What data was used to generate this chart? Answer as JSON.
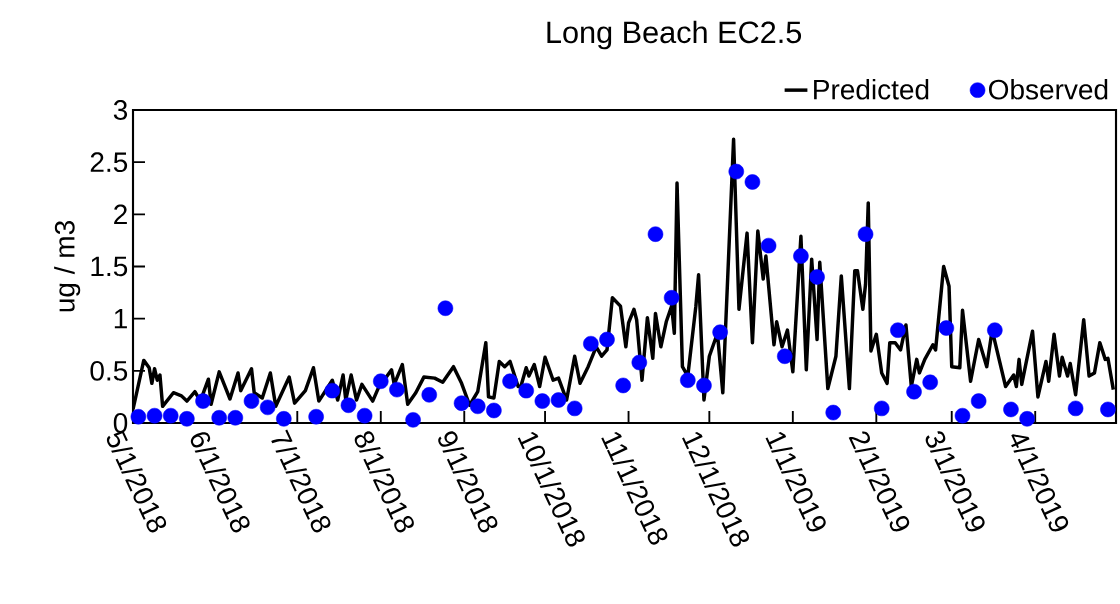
{
  "chart_data": {
    "type": "line",
    "title": "Long Beach  EC2.5",
    "ylabel": "ug / m3",
    "xlim": [
      "2018-05-01",
      "2019-05-01"
    ],
    "xticks": [
      {
        "value": "2018-05-01",
        "label": "5/1/2018"
      },
      {
        "value": "2018-06-01",
        "label": "6/1/2018"
      },
      {
        "value": "2018-07-01",
        "label": "7/1/2018"
      },
      {
        "value": "2018-08-01",
        "label": "8/1/2018"
      },
      {
        "value": "2018-09-01",
        "label": "9/1/2018"
      },
      {
        "value": "2018-10-01",
        "label": "10/1/2018"
      },
      {
        "value": "2018-11-01",
        "label": "11/1/2018"
      },
      {
        "value": "2018-12-01",
        "label": "12/1/2018"
      },
      {
        "value": "2019-01-01",
        "label": "1/1/2019"
      },
      {
        "value": "2019-02-01",
        "label": "2/1/2019"
      },
      {
        "value": "2019-03-01",
        "label": "3/1/2019"
      },
      {
        "value": "2019-04-01",
        "label": "4/1/2019"
      }
    ],
    "ylim": [
      0,
      3
    ],
    "yticks": [
      0,
      0.5,
      1,
      1.5,
      2,
      2.5,
      3
    ],
    "legend": "top right",
    "grid": false,
    "series": [
      {
        "name": "Predicted",
        "color": "#000000",
        "marker": "none",
        "line_style": "solid",
        "x": [
          "2018-05-01",
          "2018-05-05",
          "2018-05-07",
          "2018-05-08",
          "2018-05-09",
          "2018-05-10",
          "2018-05-11",
          "2018-05-12",
          "2018-05-16",
          "2018-05-19",
          "2018-05-21",
          "2018-05-24",
          "2018-05-26",
          "2018-05-29",
          "2018-05-30",
          "2018-06-02",
          "2018-06-04",
          "2018-06-06",
          "2018-06-09",
          "2018-06-10",
          "2018-06-14",
          "2018-06-15",
          "2018-06-18",
          "2018-06-21",
          "2018-06-23",
          "2018-06-28",
          "2018-06-30",
          "2018-07-04",
          "2018-07-07",
          "2018-07-09",
          "2018-07-14",
          "2018-07-16",
          "2018-07-18",
          "2018-07-19",
          "2018-07-21",
          "2018-07-23",
          "2018-07-25",
          "2018-07-29",
          "2018-07-31",
          "2018-08-05",
          "2018-08-06",
          "2018-08-09",
          "2018-08-11",
          "2018-08-14",
          "2018-08-17",
          "2018-08-21",
          "2018-08-24",
          "2018-08-28",
          "2018-08-31",
          "2018-09-03",
          "2018-09-06",
          "2018-09-09",
          "2018-09-10",
          "2018-09-12",
          "2018-09-14",
          "2018-09-16",
          "2018-09-18",
          "2018-09-21",
          "2018-09-22",
          "2018-09-24",
          "2018-09-25",
          "2018-09-27",
          "2018-09-29",
          "2018-10-01",
          "2018-10-04",
          "2018-10-06",
          "2018-10-09",
          "2018-10-12",
          "2018-10-14",
          "2018-10-17",
          "2018-10-20",
          "2018-10-22",
          "2018-10-24",
          "2018-10-26",
          "2018-10-29",
          "2018-10-31",
          "2018-11-01",
          "2018-11-03",
          "2018-11-04",
          "2018-11-06",
          "2018-11-08",
          "2018-11-10",
          "2018-11-11",
          "2018-11-13",
          "2018-11-15",
          "2018-11-17",
          "2018-11-18",
          "2018-11-19",
          "2018-11-21",
          "2018-11-23",
          "2018-11-26",
          "2018-11-27",
          "2018-11-29",
          "2018-12-01",
          "2018-12-04",
          "2018-12-06",
          "2018-12-10",
          "2018-12-12",
          "2018-12-15",
          "2018-12-17",
          "2018-12-19",
          "2018-12-21",
          "2018-12-22",
          "2018-12-25",
          "2018-12-26",
          "2018-12-28",
          "2018-12-30",
          "2019-01-01",
          "2019-01-04",
          "2019-01-06",
          "2019-01-08",
          "2019-01-10",
          "2019-01-11",
          "2019-01-14",
          "2019-01-17",
          "2019-01-19",
          "2019-01-22",
          "2019-01-24",
          "2019-01-25",
          "2019-01-27",
          "2019-01-28",
          "2019-01-29",
          "2019-01-30",
          "2019-02-01",
          "2019-02-03",
          "2019-02-05",
          "2019-02-06",
          "2019-02-08",
          "2019-02-10",
          "2019-02-12",
          "2019-02-14",
          "2019-02-16",
          "2019-02-17",
          "2019-02-19",
          "2019-02-22",
          "2019-02-23",
          "2019-02-26",
          "2019-02-28",
          "2019-03-01",
          "2019-03-04",
          "2019-03-05",
          "2019-03-08",
          "2019-03-11",
          "2019-03-14",
          "2019-03-16",
          "2019-03-21",
          "2019-03-24",
          "2019-03-25",
          "2019-03-26",
          "2019-03-27",
          "2019-03-31",
          "2019-04-02",
          "2019-04-05",
          "2019-04-06",
          "2019-04-08",
          "2019-04-10",
          "2019-04-11",
          "2019-04-13",
          "2019-04-14",
          "2019-04-16",
          "2019-04-19",
          "2019-04-21",
          "2019-04-23",
          "2019-04-25",
          "2019-04-27",
          "2019-04-28",
          "2019-04-30"
        ],
        "values": [
          0.13,
          0.6,
          0.53,
          0.38,
          0.52,
          0.41,
          0.46,
          0.16,
          0.29,
          0.26,
          0.21,
          0.3,
          0.21,
          0.42,
          0.18,
          0.49,
          0.36,
          0.23,
          0.48,
          0.31,
          0.52,
          0.29,
          0.24,
          0.48,
          0.16,
          0.44,
          0.19,
          0.31,
          0.53,
          0.21,
          0.41,
          0.22,
          0.46,
          0.22,
          0.46,
          0.22,
          0.37,
          0.21,
          0.33,
          0.51,
          0.37,
          0.56,
          0.18,
          0.29,
          0.44,
          0.43,
          0.39,
          0.54,
          0.38,
          0.17,
          0.3,
          0.77,
          0.25,
          0.24,
          0.59,
          0.54,
          0.59,
          0.35,
          0.35,
          0.53,
          0.45,
          0.56,
          0.35,
          0.63,
          0.41,
          0.43,
          0.22,
          0.64,
          0.38,
          0.54,
          0.73,
          0.64,
          0.7,
          1.2,
          1.12,
          0.73,
          0.96,
          1.09,
          0.99,
          0.41,
          1.01,
          0.62,
          1.05,
          0.73,
          0.97,
          1.12,
          0.86,
          2.3,
          0.54,
          0.45,
          1.12,
          1.42,
          0.22,
          0.64,
          0.86,
          0.29,
          2.72,
          1.09,
          1.82,
          0.77,
          1.84,
          1.38,
          1.6,
          0.75,
          0.97,
          0.73,
          0.89,
          0.49,
          1.79,
          0.51,
          1.57,
          0.8,
          1.54,
          0.33,
          0.64,
          1.41,
          0.33,
          1.46,
          1.46,
          1.09,
          1.33,
          2.11,
          0.69,
          0.85,
          0.48,
          0.38,
          0.77,
          0.77,
          0.7,
          0.94,
          0.35,
          0.61,
          0.48,
          0.61,
          0.75,
          0.7,
          1.5,
          1.31,
          0.54,
          0.53,
          1.08,
          0.4,
          0.8,
          0.54,
          0.89,
          0.35,
          0.46,
          0.35,
          0.61,
          0.37,
          0.88,
          0.25,
          0.59,
          0.4,
          0.85,
          0.45,
          0.63,
          0.45,
          0.57,
          0.27,
          0.99,
          0.45,
          0.48,
          0.77,
          0.61,
          0.62,
          0.32
        ]
      },
      {
        "name": "Observed",
        "type": "scatter",
        "color": "#0000ff",
        "marker": "circle",
        "x": [
          "2018-05-03",
          "2018-05-09",
          "2018-05-15",
          "2018-05-21",
          "2018-05-27",
          "2018-06-02",
          "2018-06-08",
          "2018-06-14",
          "2018-06-20",
          "2018-06-26",
          "2018-07-08",
          "2018-07-14",
          "2018-07-20",
          "2018-07-26",
          "2018-08-01",
          "2018-08-07",
          "2018-08-13",
          "2018-08-19",
          "2018-08-25",
          "2018-08-31",
          "2018-09-06",
          "2018-09-12",
          "2018-09-18",
          "2018-09-24",
          "2018-09-30",
          "2018-10-06",
          "2018-10-12",
          "2018-10-18",
          "2018-10-24",
          "2018-10-30",
          "2018-11-05",
          "2018-11-11",
          "2018-11-17",
          "2018-11-23",
          "2018-11-29",
          "2018-12-05",
          "2018-12-11",
          "2018-12-17",
          "2018-12-23",
          "2018-12-29",
          "2019-01-04",
          "2019-01-10",
          "2019-01-16",
          "2019-01-28",
          "2019-02-03",
          "2019-02-09",
          "2019-02-15",
          "2019-02-21",
          "2019-02-27",
          "2019-03-05",
          "2019-03-11",
          "2019-03-17",
          "2019-03-23",
          "2019-03-29",
          "2019-04-16",
          "2019-04-28"
        ],
        "values": [
          0.06,
          0.07,
          0.07,
          0.04,
          0.21,
          0.05,
          0.05,
          0.21,
          0.15,
          0.04,
          0.06,
          0.31,
          0.17,
          0.07,
          0.4,
          0.32,
          0.03,
          0.27,
          1.1,
          0.19,
          0.16,
          0.12,
          0.4,
          0.31,
          0.21,
          0.22,
          0.14,
          0.76,
          0.8,
          0.36,
          0.58,
          1.81,
          1.2,
          0.41,
          0.36,
          0.87,
          2.41,
          2.31,
          1.7,
          0.64,
          1.6,
          1.4,
          0.1,
          1.81,
          0.14,
          0.89,
          0.3,
          0.39,
          0.91,
          0.07,
          0.21,
          0.89,
          0.13,
          0.04,
          0.14,
          0.13
        ]
      }
    ]
  }
}
